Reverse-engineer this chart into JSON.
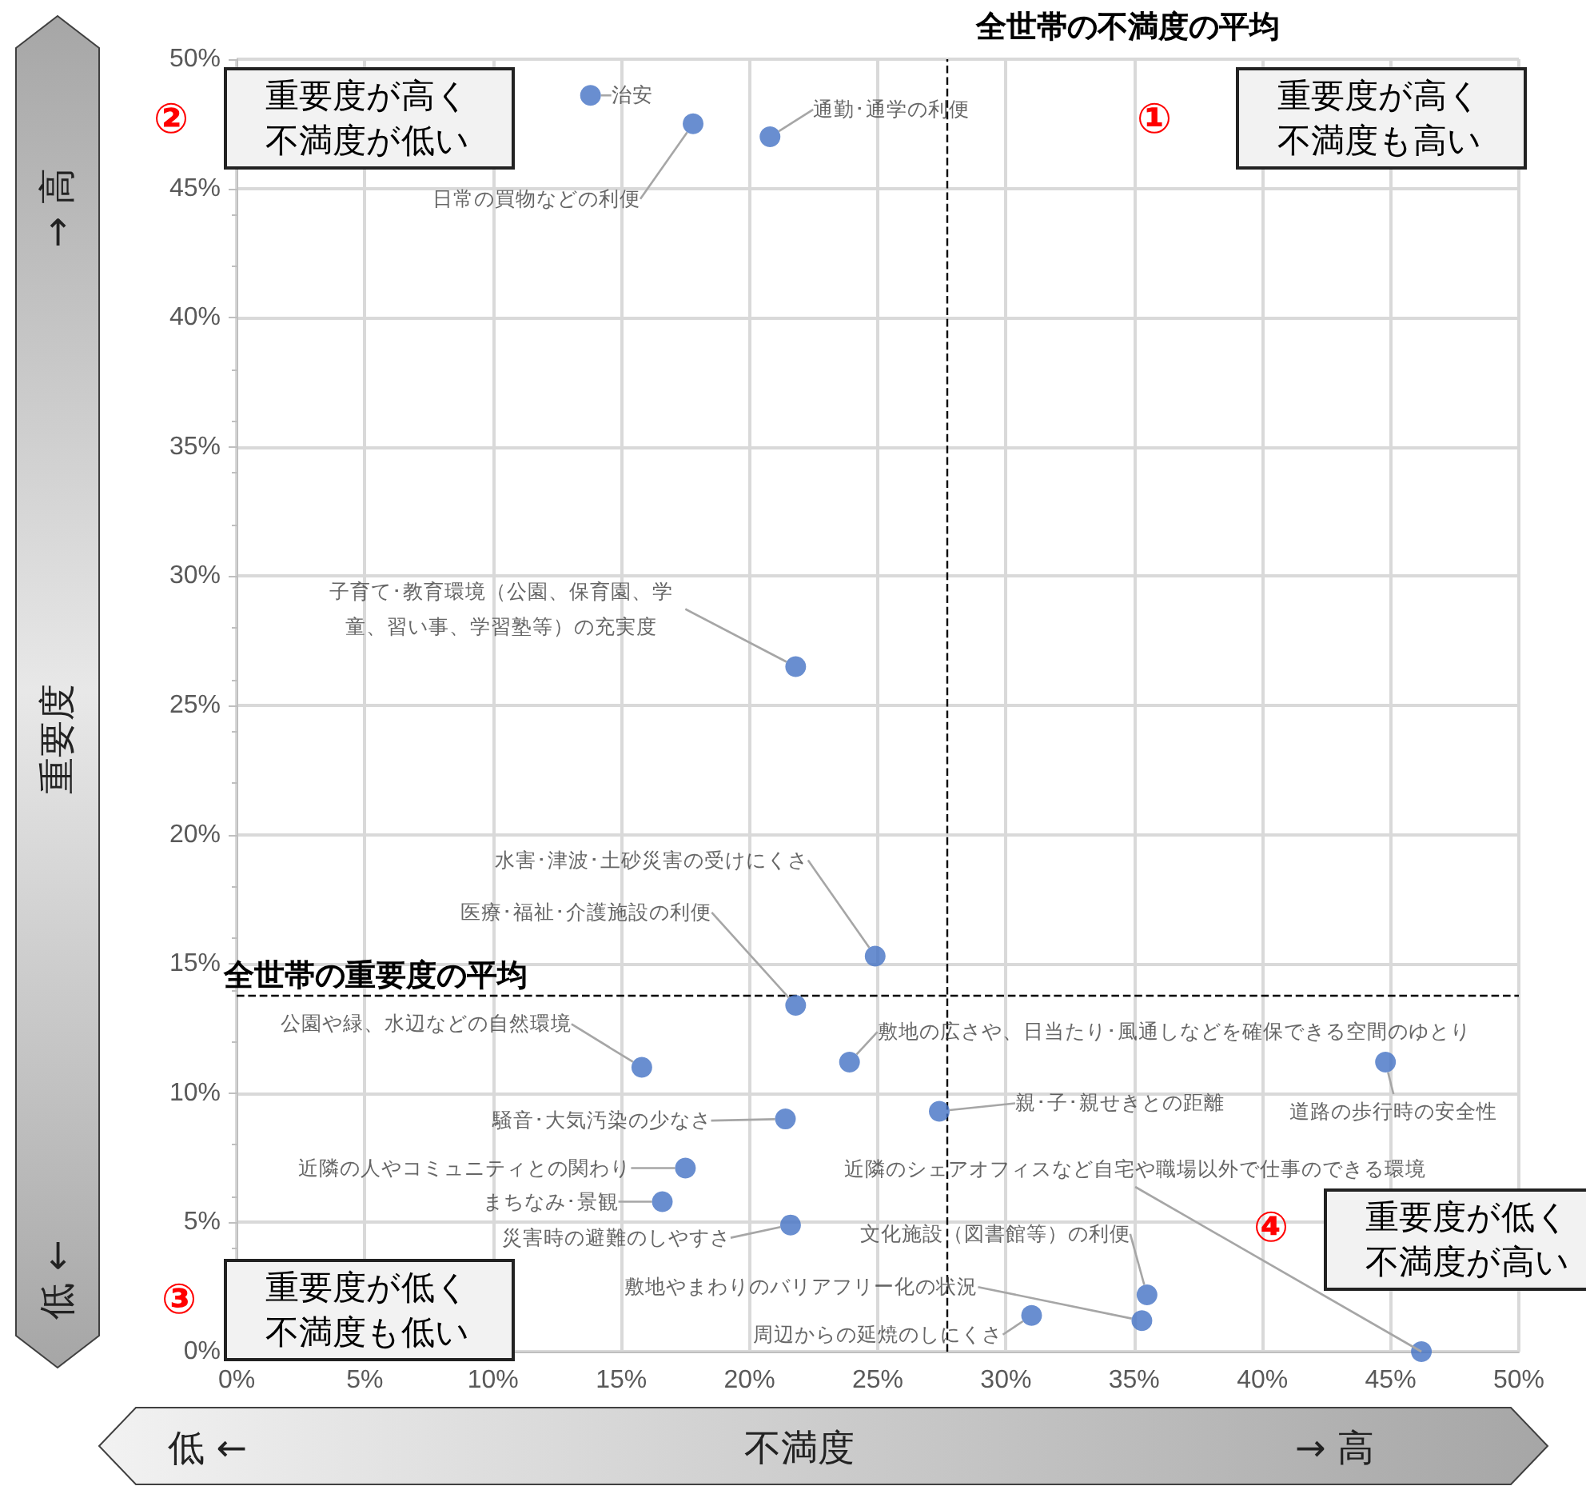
{
  "chart_data": {
    "type": "scatter",
    "xlabel": "不満度",
    "ylabel": "重要度",
    "x": [
      13.8,
      17.8,
      20.8,
      21.8,
      24.9,
      21.8,
      15.8,
      23.9,
      44.8,
      27.4,
      21.4,
      17.5,
      16.6,
      21.6,
      35.5,
      35.3,
      31.0,
      46.2
    ],
    "values": [
      48.6,
      47.5,
      47.0,
      26.5,
      15.3,
      13.4,
      11.0,
      11.2,
      11.2,
      9.3,
      9.0,
      7.1,
      5.8,
      4.9,
      2.2,
      1.2,
      1.4,
      0.0
    ],
    "value_labels": [
      "治安",
      "日常の買物などの利便",
      "通勤･通学の利便",
      "子育て･教育環境（公園、保育園、学童、習い事、学習塾等）の充実度",
      "水害･津波･土砂災害の受けにくさ",
      "医療･福祉･介護施設の利便",
      "公園や緑、水辺などの自然環境",
      "敷地の広さや、日当たり･風通しなどを確保できる空間のゆとり",
      "道路の歩行時の安全性",
      "親･子･親せきとの距離",
      "騒音･大気汚染の少なさ",
      "近隣の人やコミュニティとの関わり",
      "まちなみ･景観",
      "災害時の避難のしやすさ",
      "文化施設（図書館等）の利便",
      "敷地やまわりのバリアフリー化の状況",
      "周辺からの延焼のしにくさ",
      "近隣のシェアオフィスなど自宅や職場以外で仕事のできる環境"
    ],
    "color": "#4472c4",
    "marker": "circle",
    "grid": true,
    "xlim": [
      0,
      50
    ],
    "ylim": [
      0,
      50
    ],
    "xticks": [
      {
        "value": 0,
        "label": "0%"
      },
      {
        "value": 5,
        "label": "5%"
      },
      {
        "value": 10,
        "label": "10%"
      },
      {
        "value": 15,
        "label": "15%"
      },
      {
        "value": 20,
        "label": "20%"
      },
      {
        "value": 25,
        "label": "25%"
      },
      {
        "value": 30,
        "label": "30%"
      },
      {
        "value": 35,
        "label": "35%"
      },
      {
        "value": 40,
        "label": "40%"
      },
      {
        "value": 45,
        "label": "45%"
      },
      {
        "value": 50,
        "label": "50%"
      }
    ],
    "yticks": [
      {
        "value": 0,
        "label": "0%"
      },
      {
        "value": 5,
        "label": "5%"
      },
      {
        "value": 10,
        "label": "10%"
      },
      {
        "value": 15,
        "label": "15%"
      },
      {
        "value": 20,
        "label": "20%"
      },
      {
        "value": 25,
        "label": "25%"
      },
      {
        "value": 30,
        "label": "30%"
      },
      {
        "value": 35,
        "label": "35%"
      },
      {
        "value": 40,
        "label": "40%"
      },
      {
        "value": 45,
        "label": "45%"
      },
      {
        "value": 50,
        "label": "50%"
      }
    ],
    "ref_lines": [
      {
        "axis": "x",
        "value": 27.7,
        "label": "全世帯の不満度の平均",
        "line_style": "dashed",
        "color": "#000000"
      },
      {
        "axis": "y",
        "value": 13.8,
        "label": "全世帯の重要度の平均",
        "line_style": "dashed",
        "color": "#000000"
      }
    ],
    "annotations": [
      "①",
      "重要度が高く不満度も高い",
      "②",
      "重要度が高く不満度が低い",
      "③",
      "重要度が低く不満度も低い",
      "④",
      "重要度が低く不満度が高い",
      "低 ←",
      "→ 高",
      "低 ←",
      "→ 高"
    ]
  }
}
